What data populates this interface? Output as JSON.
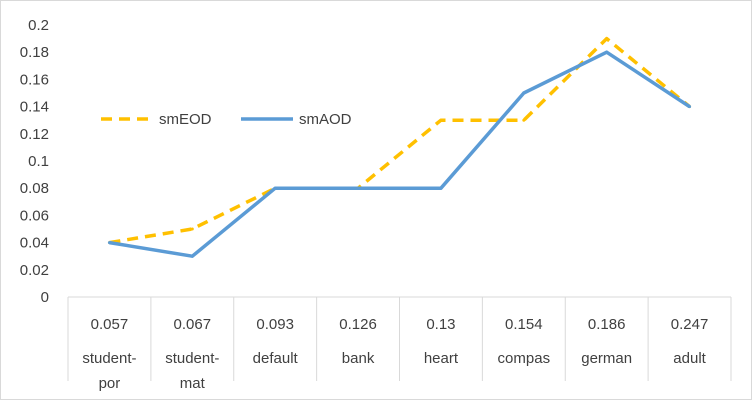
{
  "chart_data": {
    "type": "line",
    "title": "",
    "xlabel": "",
    "ylabel": "",
    "ylim": [
      0,
      0.2
    ],
    "y_ticks": [
      "0",
      "0.02",
      "0.04",
      "0.06",
      "0.08",
      "0.1",
      "0.12",
      "0.14",
      "0.16",
      "0.18",
      "0.2"
    ],
    "grid": false,
    "legend_position": "left",
    "categories": [
      {
        "value": "0.057",
        "name": [
          "student-",
          "por"
        ]
      },
      {
        "value": "0.067",
        "name": [
          "student-",
          "mat"
        ]
      },
      {
        "value": "0.093",
        "name": [
          "default"
        ]
      },
      {
        "value": "0.126",
        "name": [
          "bank"
        ]
      },
      {
        "value": "0.13",
        "name": [
          "heart"
        ]
      },
      {
        "value": "0.154",
        "name": [
          "compas"
        ]
      },
      {
        "value": "0.186",
        "name": [
          "german"
        ]
      },
      {
        "value": "0.247",
        "name": [
          "adult"
        ]
      }
    ],
    "series": [
      {
        "name": "smEOD",
        "color": "#ffc000",
        "dash": true,
        "values": [
          0.04,
          0.05,
          0.08,
          0.08,
          0.13,
          0.13,
          0.19,
          0.14
        ]
      },
      {
        "name": "smAOD",
        "color": "#5b9bd5",
        "dash": false,
        "values": [
          0.04,
          0.03,
          0.08,
          0.08,
          0.08,
          0.15,
          0.18,
          0.14
        ]
      }
    ]
  }
}
